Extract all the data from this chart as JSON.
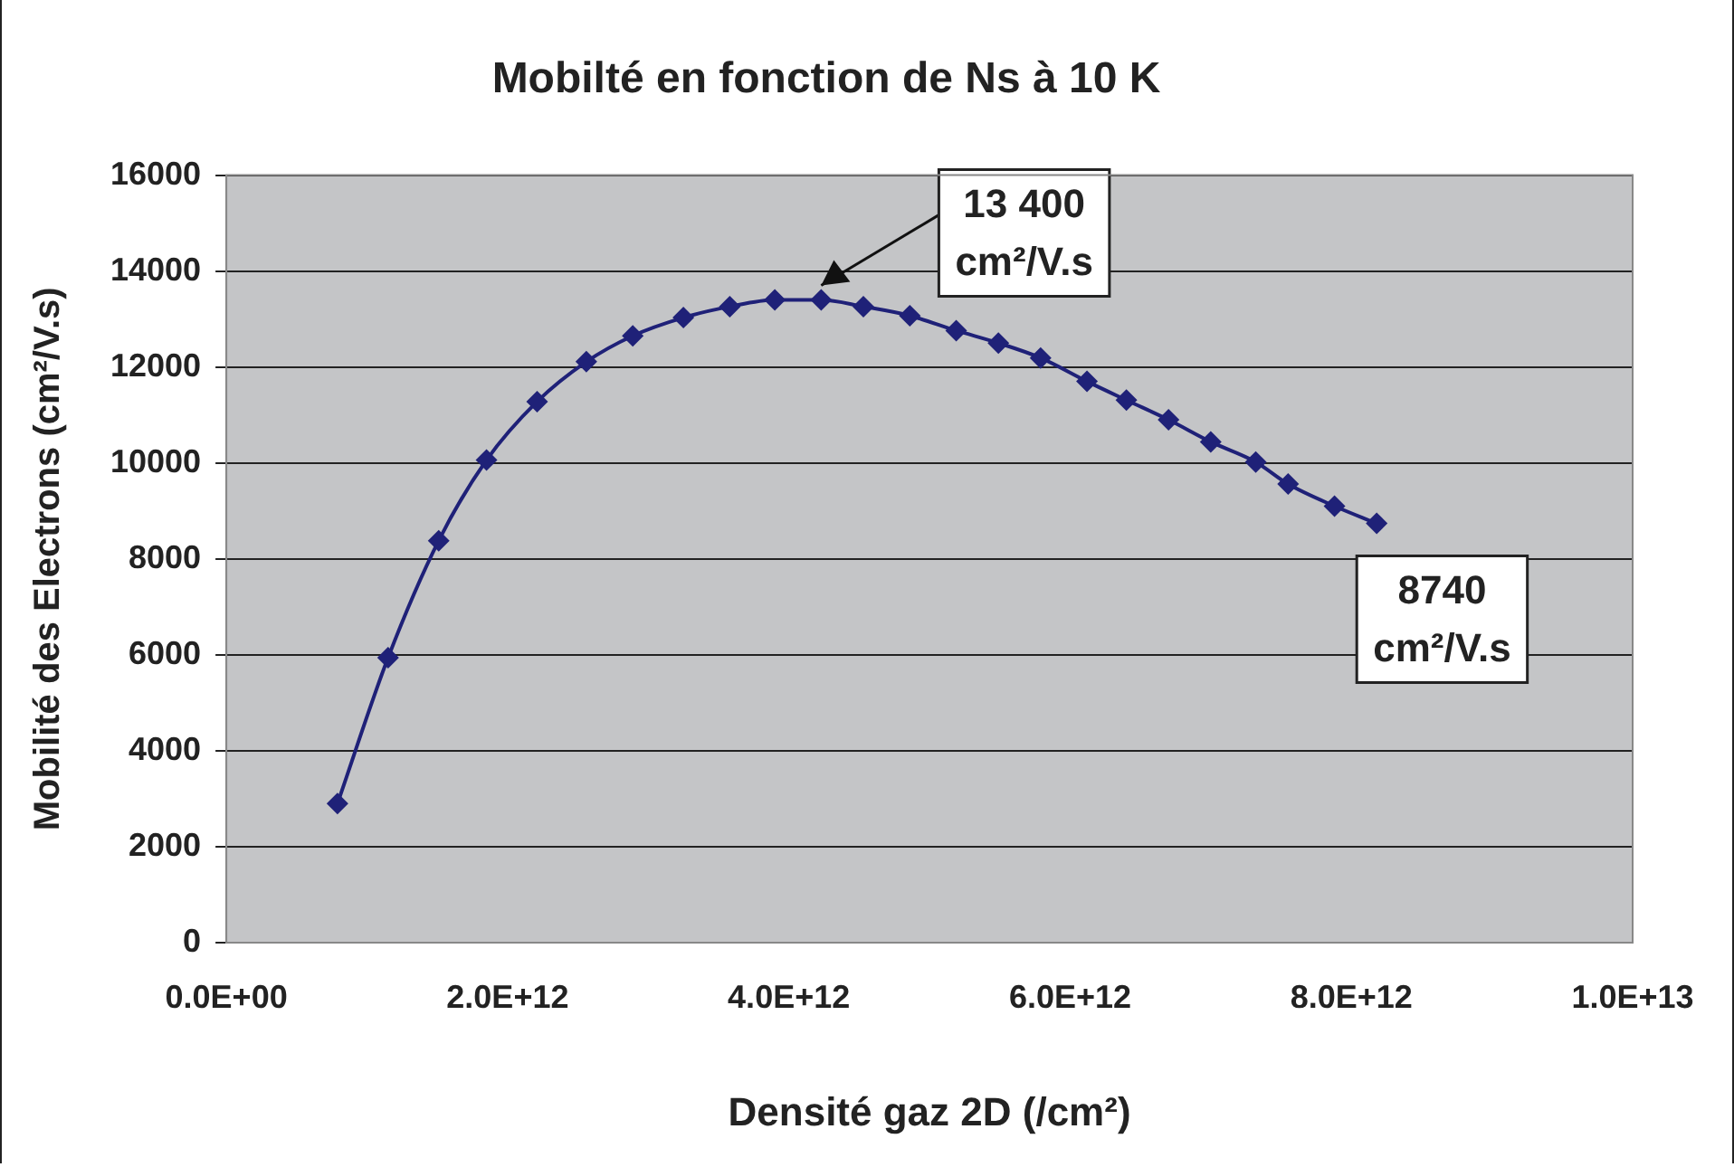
{
  "chart_data": {
    "type": "line",
    "title": "Mobilté en fonction de Ns à 10 K",
    "xlabel": "Densité gaz 2D (/cm²)",
    "ylabel": "Mobilité des Electrons (cm²/V.s)",
    "x": [
      790000000000.0,
      1150000000000.0,
      1510000000000.0,
      1850000000000.0,
      2210000000000.0,
      2560000000000.0,
      2890000000000.0,
      3250000000000.0,
      3580000000000.0,
      3900000000000.0,
      4230000000000.0,
      4530000000000.0,
      4860000000000.0,
      5190000000000.0,
      5490000000000.0,
      5790000000000.0,
      6120000000000.0,
      6400000000000.0,
      6700000000000.0,
      7000000000000.0,
      7320000000000.0,
      7550000000000.0,
      7880000000000.0,
      8180000000000.0
    ],
    "series": [
      {
        "color": "#1f2178",
        "values": [
          2900,
          5940,
          8380,
          10060,
          11280,
          12110,
          12650,
          13030,
          13260,
          13400,
          13400,
          13260,
          13070,
          12760,
          12500,
          12190,
          11700,
          11310,
          10900,
          10440,
          10020,
          9560,
          9100,
          8740
        ]
      }
    ],
    "xlim": [
      0,
      10000000000000.0
    ],
    "xticks": [
      {
        "value": 0,
        "label": "0.0E+00"
      },
      {
        "value": 2000000000000.0,
        "label": "2.0E+12"
      },
      {
        "value": 4000000000000.0,
        "label": "4.0E+12"
      },
      {
        "value": 6000000000000.0,
        "label": "6.0E+12"
      },
      {
        "value": 8000000000000.0,
        "label": "8.0E+12"
      },
      {
        "value": 10000000000000.0,
        "label": "1.0E+13"
      }
    ],
    "ylim": [
      0,
      16000
    ],
    "yticks": [
      0,
      2000,
      4000,
      6000,
      8000,
      10000,
      12000,
      14000,
      16000
    ],
    "annotations": [
      {
        "text": "13 400\ncm²/V.s",
        "x": 4230000000000.0,
        "y": 13400
      },
      {
        "text": "8740\ncm²/V.s",
        "x": 8180000000000.0,
        "y": 8740
      }
    ],
    "grid": "y",
    "legend": false,
    "marker": "diamond",
    "line_style": "solid"
  }
}
